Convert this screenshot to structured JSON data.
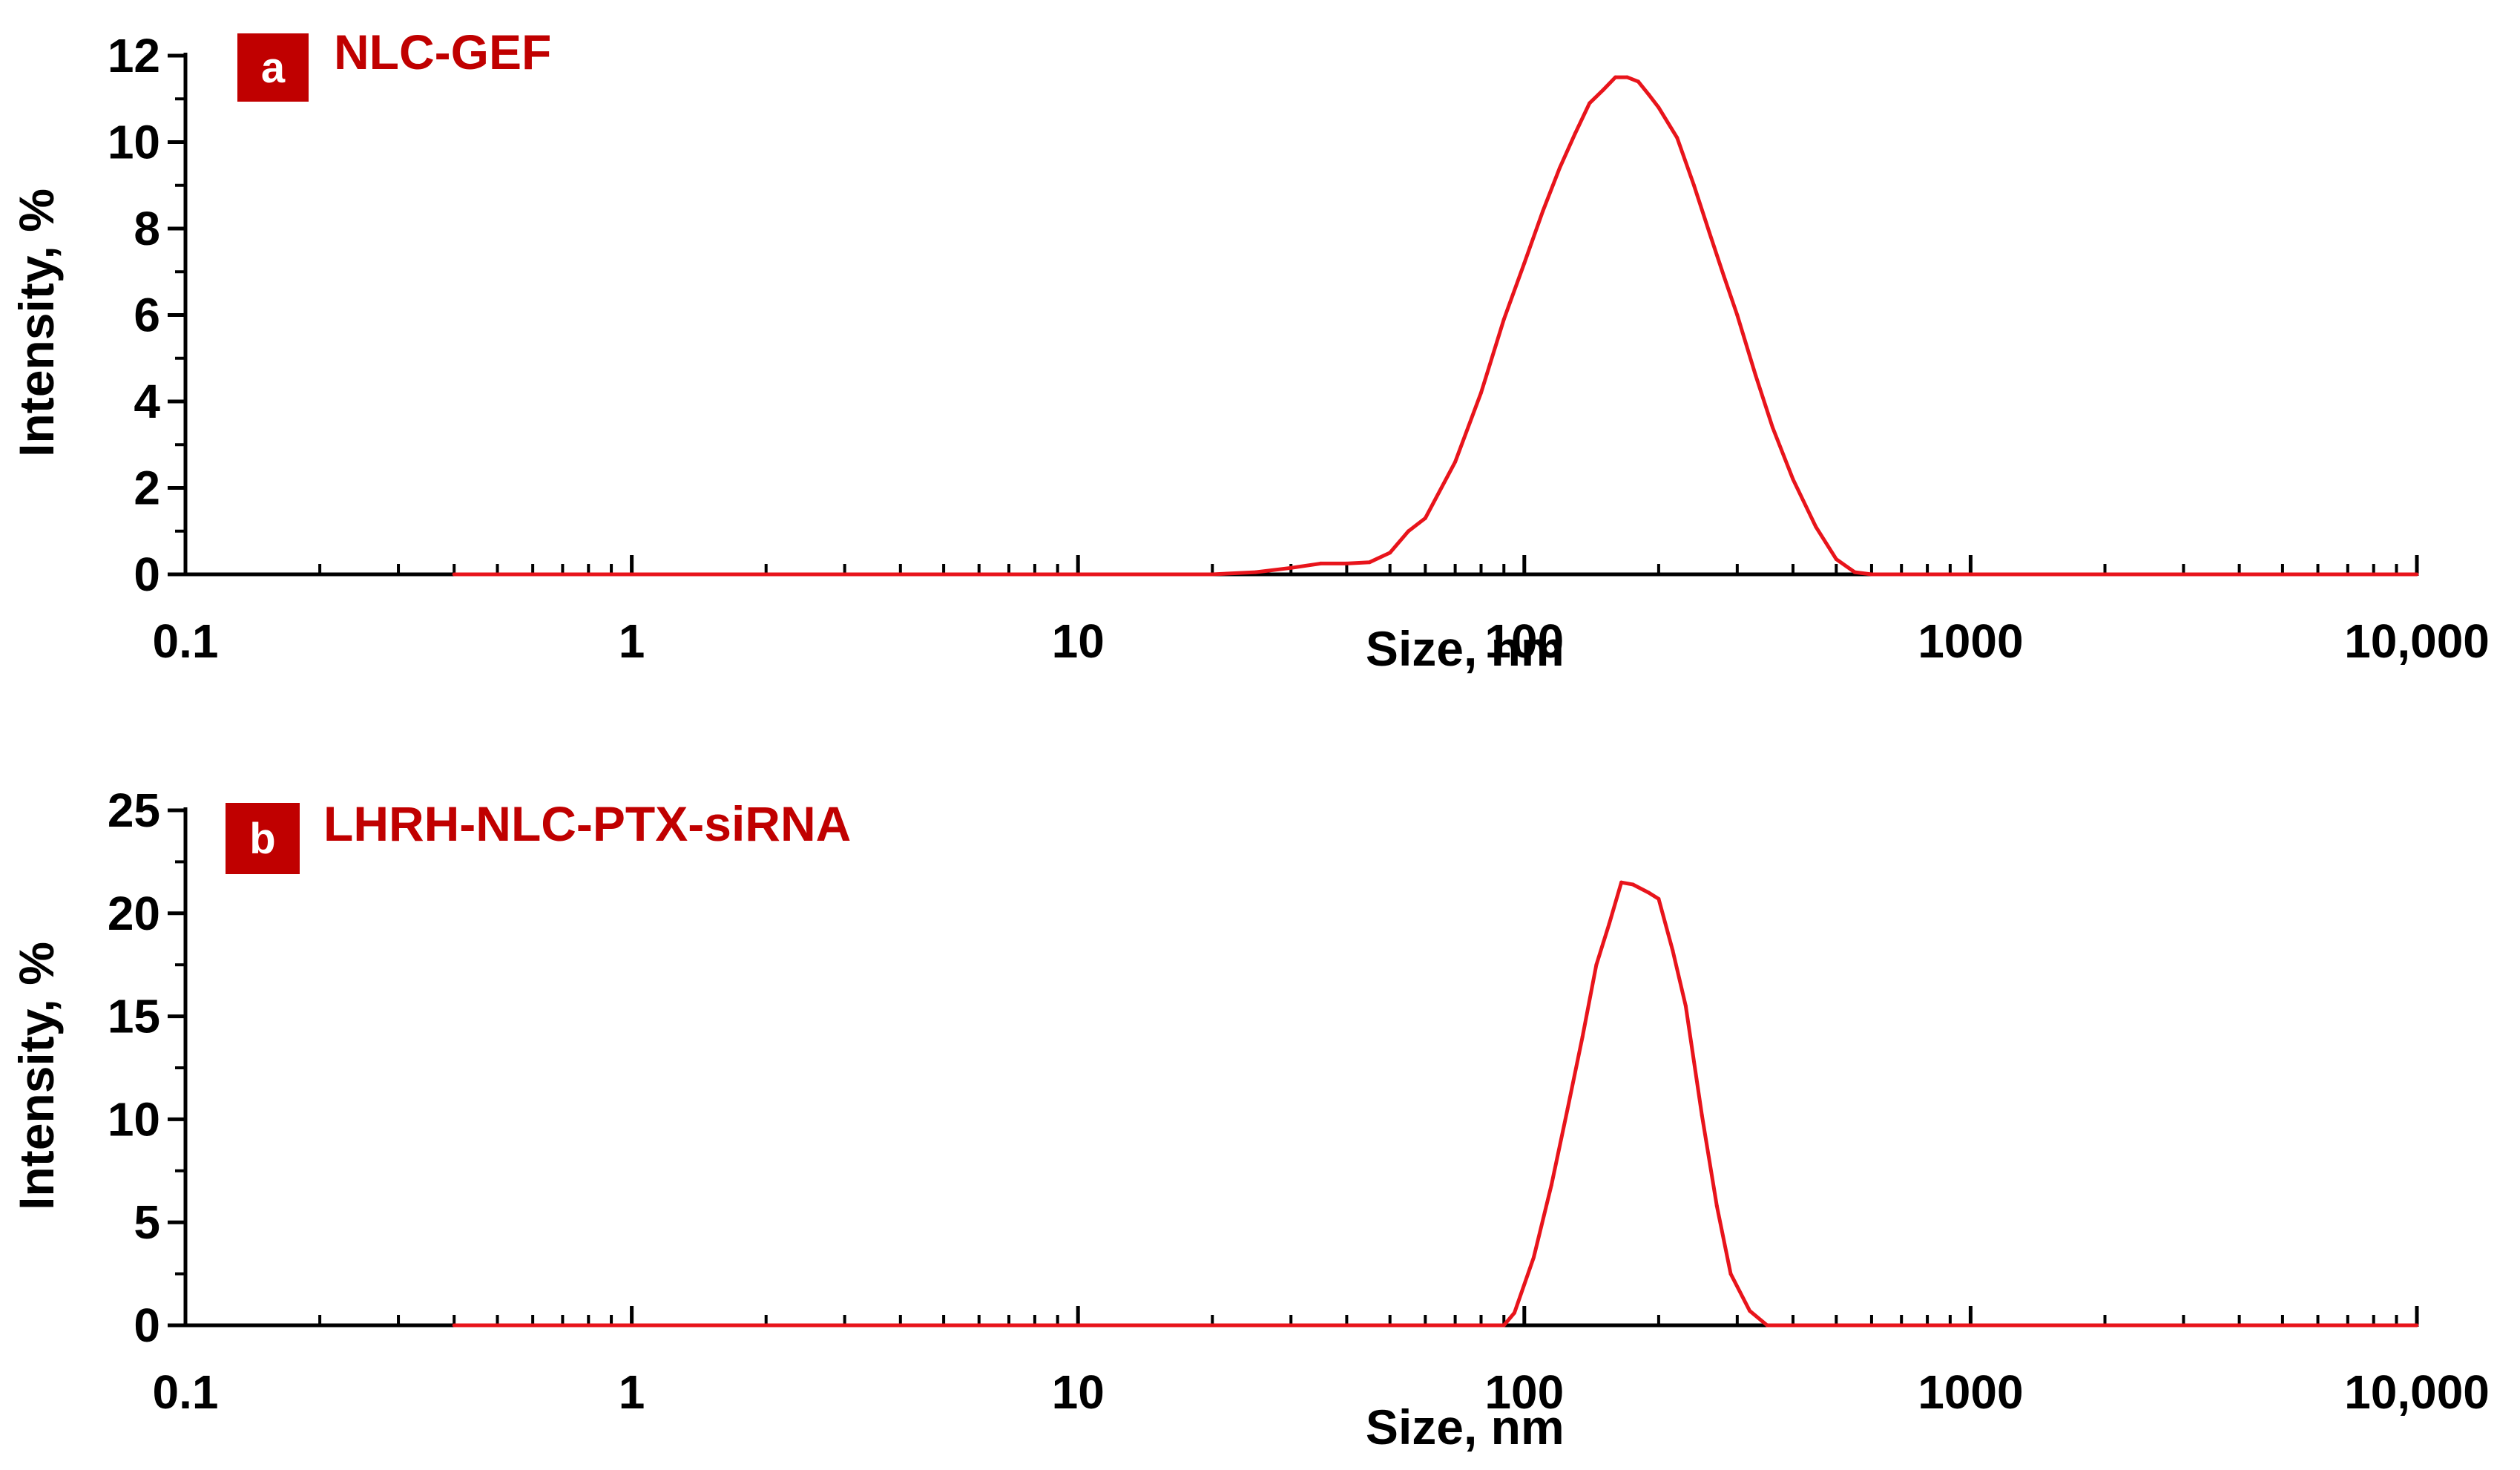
{
  "colors": {
    "series": "#e8141b",
    "badge": "#c00000",
    "axis": "#000000",
    "background": "#ffffff"
  },
  "chart_data": [
    {
      "type": "line",
      "panel_letter": "a",
      "title": "NLC-GEF",
      "xlabel": "Size, nm",
      "ylabel": "Intensity, %",
      "x_scale": "log",
      "xlim": [
        0.1,
        10000
      ],
      "ylim": [
        0,
        12
      ],
      "x_ticks": [
        0.1,
        1,
        10,
        100,
        1000,
        10000
      ],
      "x_tick_labels": [
        "0.1",
        "1",
        "10",
        "100",
        "1000",
        "10,000"
      ],
      "y_ticks": [
        0,
        2,
        4,
        6,
        8,
        10,
        12
      ],
      "y_tick_labels": [
        "0",
        "2",
        "4",
        "6",
        "8",
        "10",
        "12"
      ],
      "grid": false,
      "series": [
        {
          "color": "#e8141b",
          "x": [
            0.4,
            1,
            5,
            10,
            20,
            25,
            30,
            35,
            40,
            45,
            50,
            55,
            60,
            70,
            80,
            90,
            100,
            110,
            120,
            130,
            140,
            150,
            160,
            170,
            180,
            190,
            200,
            220,
            240,
            260,
            280,
            300,
            330,
            360,
            400,
            450,
            500,
            550,
            600,
            700,
            1000,
            5000,
            10000
          ],
          "y": [
            0,
            0,
            0,
            0,
            0,
            0.05,
            0.15,
            0.25,
            0.25,
            0.28,
            0.5,
            1.0,
            1.3,
            2.6,
            4.2,
            5.9,
            7.2,
            8.4,
            9.4,
            10.2,
            10.9,
            11.2,
            11.5,
            11.5,
            11.4,
            11.1,
            10.8,
            10.1,
            9.0,
            7.9,
            6.9,
            6.0,
            4.6,
            3.4,
            2.2,
            1.1,
            0.35,
            0.05,
            0,
            0,
            0,
            0,
            0
          ]
        }
      ]
    },
    {
      "type": "line",
      "panel_letter": "b",
      "title": "LHRH-NLC-PTX-siRNA",
      "xlabel": "Size, nm",
      "ylabel": "Intensity, %",
      "x_scale": "log",
      "xlim": [
        0.1,
        10000
      ],
      "ylim": [
        0,
        25
      ],
      "x_ticks": [
        0.1,
        1,
        10,
        100,
        1000,
        10000
      ],
      "x_tick_labels": [
        "0.1",
        "1",
        "10",
        "100",
        "1000",
        "10,000"
      ],
      "y_ticks": [
        0,
        5,
        10,
        15,
        20,
        25
      ],
      "y_tick_labels": [
        "0",
        "5",
        "10",
        "15",
        "20",
        "25"
      ],
      "grid": false,
      "series": [
        {
          "color": "#e8141b",
          "x": [
            0.4,
            1,
            10,
            50,
            90,
            95,
            105,
            115,
            125,
            135,
            145,
            155,
            165,
            175,
            190,
            200,
            215,
            230,
            250,
            270,
            290,
            320,
            350,
            400,
            1000,
            5000,
            10000
          ],
          "y": [
            0,
            0,
            0,
            0,
            0,
            0.6,
            3.3,
            6.8,
            10.5,
            14.0,
            17.5,
            19.5,
            21.5,
            21.4,
            21.0,
            20.7,
            18.2,
            15.5,
            10.2,
            5.8,
            2.5,
            0.7,
            0,
            0,
            0,
            0,
            0
          ]
        }
      ]
    }
  ]
}
